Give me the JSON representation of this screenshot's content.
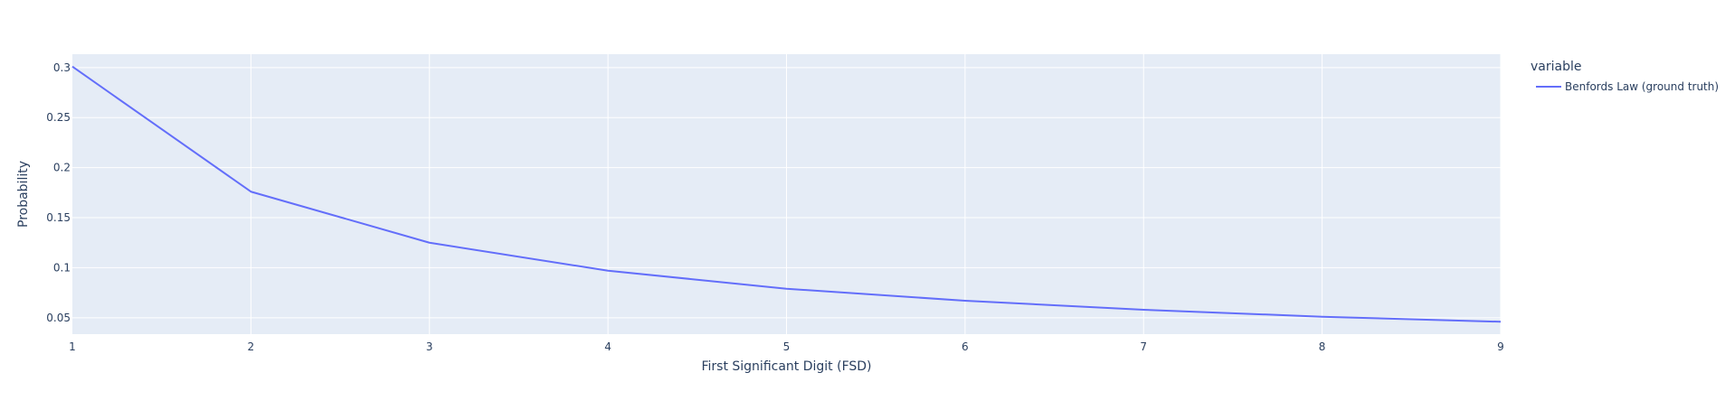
{
  "colors": {
    "plot_background": "#e5ecf6",
    "grid": "#ffffff",
    "text": "#2a3f5f",
    "series_line": "#636efa"
  },
  "chart_data": {
    "type": "line",
    "title": "",
    "xlabel": "First Significant Digit (FSD)",
    "ylabel": "Probability",
    "x": [
      1,
      2,
      3,
      4,
      5,
      6,
      7,
      8,
      9
    ],
    "series": [
      {
        "name": "Benfords Law (ground truth)",
        "values": [
          0.301,
          0.176,
          0.125,
          0.097,
          0.079,
          0.067,
          0.058,
          0.051,
          0.046
        ]
      }
    ],
    "xlim": [
      1,
      9
    ],
    "ylim": [
      0.0336,
      0.3134
    ],
    "x_ticks": [
      1,
      2,
      3,
      4,
      5,
      6,
      7,
      8,
      9
    ],
    "y_ticks": [
      0.05,
      0.1,
      0.15,
      0.2,
      0.25,
      0.3
    ],
    "x_tick_labels": [
      "1",
      "2",
      "3",
      "4",
      "5",
      "6",
      "7",
      "8",
      "9"
    ],
    "y_tick_labels": [
      "0.05",
      "0.1",
      "0.15",
      "0.2",
      "0.25",
      "0.3"
    ],
    "grid": true,
    "legend": {
      "title": "variable",
      "placement": "right"
    }
  }
}
